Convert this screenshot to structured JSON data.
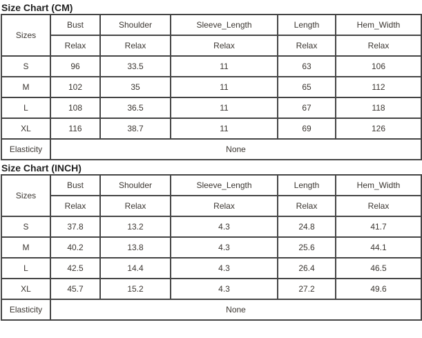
{
  "tables": [
    {
      "title": "Size Chart (CM)",
      "sizes_label": "Sizes",
      "headers": [
        "Bust",
        "Shoulder",
        "Sleeve_Length",
        "Length",
        "Hem_Width"
      ],
      "subheaders": [
        "Relax",
        "Relax",
        "Relax",
        "Relax",
        "Relax"
      ],
      "rows": [
        [
          "S",
          "96",
          "33.5",
          "11",
          "63",
          "106"
        ],
        [
          "M",
          "102",
          "35",
          "11",
          "65",
          "112"
        ],
        [
          "L",
          "108",
          "36.5",
          "11",
          "67",
          "118"
        ],
        [
          "XL",
          "116",
          "38.7",
          "11",
          "69",
          "126"
        ]
      ],
      "elasticity_label": "Elasticity",
      "elasticity_value": "None"
    },
    {
      "title": "Size Chart (INCH)",
      "sizes_label": "Sizes",
      "headers": [
        "Bust",
        "Shoulder",
        "Sleeve_Length",
        "Length",
        "Hem_Width"
      ],
      "subheaders": [
        "Relax",
        "Relax",
        "Relax",
        "Relax",
        "Relax"
      ],
      "rows": [
        [
          "S",
          "37.8",
          "13.2",
          "4.3",
          "24.8",
          "41.7"
        ],
        [
          "M",
          "40.2",
          "13.8",
          "4.3",
          "25.6",
          "44.1"
        ],
        [
          "L",
          "42.5",
          "14.4",
          "4.3",
          "26.4",
          "46.5"
        ],
        [
          "XL",
          "45.7",
          "15.2",
          "4.3",
          "27.2",
          "49.6"
        ]
      ],
      "elasticity_label": "Elasticity",
      "elasticity_value": "None"
    }
  ]
}
